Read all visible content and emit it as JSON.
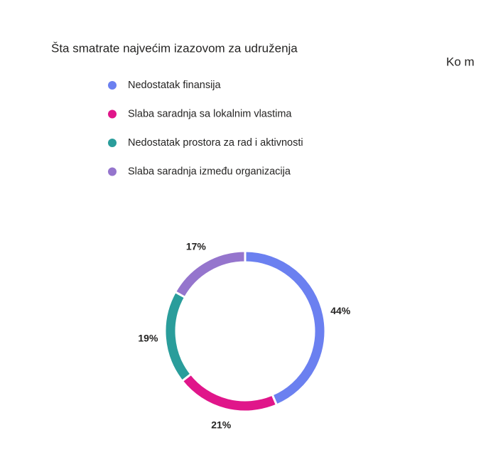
{
  "chart_data": {
    "type": "donut",
    "title": "Šta smatrate najvećim izazovom za udruženja",
    "categories": [
      "Nedostatak finansija",
      "Slaba saradnja sa lokalnim vlastima",
      "Nedostatak prostora za rad i aktivnosti",
      "Slaba saradnja između organizacija"
    ],
    "values": [
      44,
      21,
      19,
      17
    ],
    "value_labels": [
      "44%",
      "21%",
      "19%",
      "17%"
    ],
    "colors": [
      "#6b80f0",
      "#e0168a",
      "#2a9d9b",
      "#9575cd"
    ],
    "legend": "top-left"
  },
  "next_chart_title": "Ko m"
}
